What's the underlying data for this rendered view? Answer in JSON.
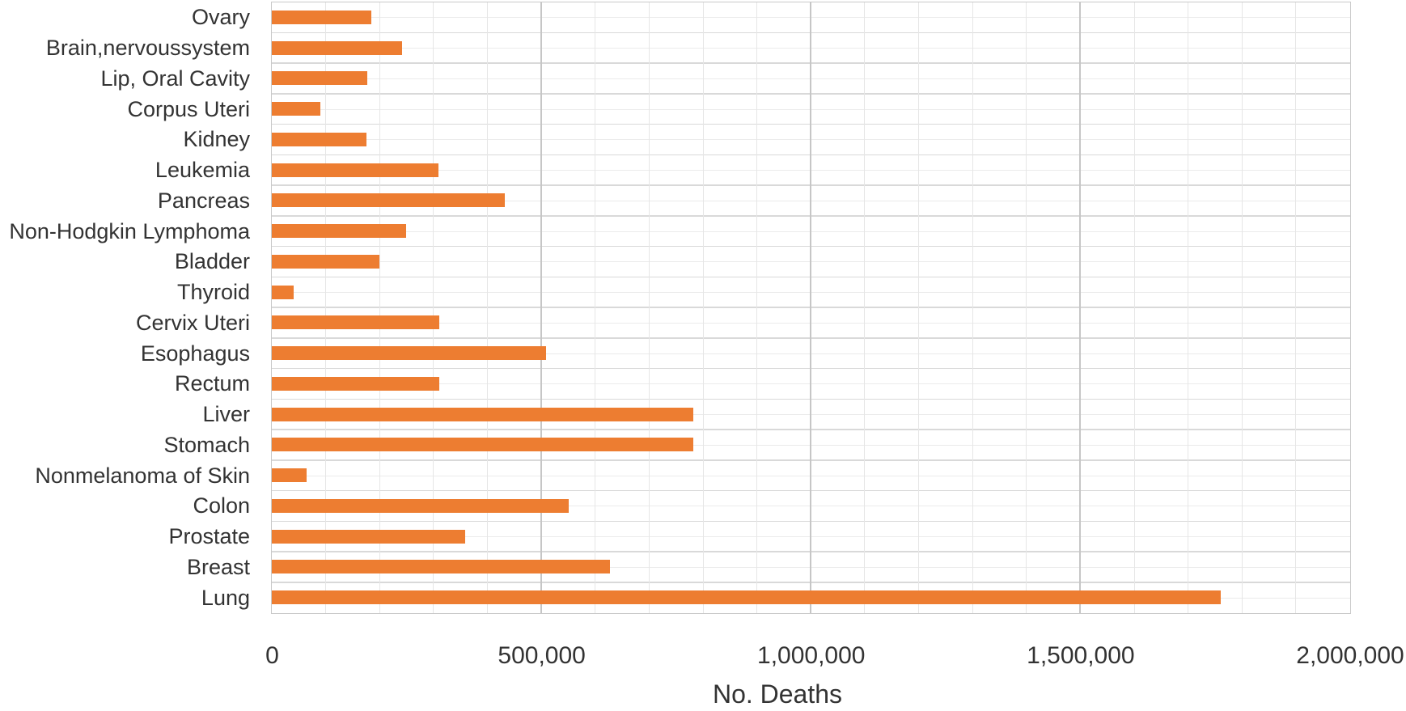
{
  "figure": {
    "background": "#ffffff",
    "text_color": "#333333"
  },
  "chart_data": {
    "type": "bar",
    "orientation": "horizontal",
    "title": "",
    "xlabel": "No. Deaths",
    "ylabel": "",
    "bar_color": "#ED7D31",
    "grid": true,
    "legend_position": "none",
    "xlim": [
      0,
      2000000
    ],
    "x_major_interval": 500000,
    "x_minor_interval": 100000,
    "x_ticks": [
      {
        "label": "0",
        "value": 0
      },
      {
        "label": "500,000",
        "value": 500000
      },
      {
        "label": "1,000,000",
        "value": 1000000
      },
      {
        "label": "1,500,000",
        "value": 1500000
      },
      {
        "label": "2,000,000",
        "value": 2000000
      }
    ],
    "categories": [
      "Ovary",
      "Brain,nervoussystem",
      "Lip, Oral Cavity",
      "Corpus Uteri",
      "Kidney",
      "Leukemia",
      "Pancreas",
      "Non-Hodgkin Lymphoma",
      "Bladder",
      "Thyroid",
      "Cervix Uteri",
      "Esophagus",
      "Rectum",
      "Liver",
      "Stomach",
      "Nonmelanoma of Skin",
      "Colon",
      "Prostate",
      "Breast",
      "Lung"
    ],
    "values": [
      184799,
      241037,
      177384,
      89929,
      175098,
      309006,
      432242,
      248724,
      199922,
      41071,
      311365,
      508585,
      310394,
      781631,
      782685,
      65155,
      551269,
      358989,
      626679,
      1761007
    ],
    "colors": {
      "plot_border": "#c9c9c9",
      "grid_major": "#c6c6c6",
      "grid_minor": "#e6e6e6",
      "row_boundary_line": "#d9d9d9",
      "row_center_line": "#ebebeb"
    }
  }
}
